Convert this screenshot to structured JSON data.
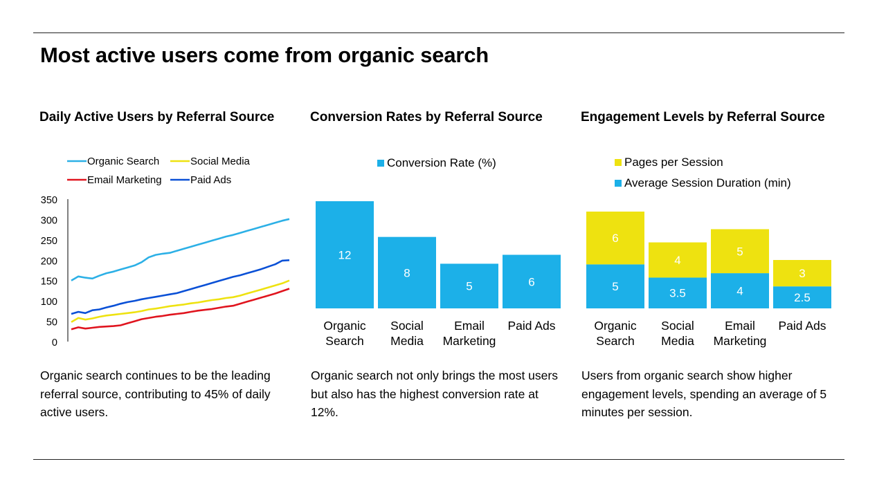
{
  "title": "Most active users come from organic search",
  "panels": [
    {
      "title": "Daily Active Users by Referral Source",
      "caption": "Organic search continues to be the leading referral source, contributing to 45% of daily active users."
    },
    {
      "title": "Conversion Rates by Referral Source",
      "caption": "Organic search not only brings the most users but also has the highest conversion rate at 12%."
    },
    {
      "title": "Engagement Levels by Referral Source",
      "caption": "Users from organic search show higher engagement levels, spending an average of 5 minutes per session."
    }
  ],
  "colors": {
    "organic": "#2CB0E6",
    "social": "#EEE210",
    "email": "#E0141E",
    "paid": "#0A50D6",
    "bar_blue": "#1CB0E8",
    "bar_yellow": "#EEE210"
  },
  "chart_data": [
    {
      "type": "line",
      "title": "Daily Active Users by Referral Source",
      "ylim": [
        0,
        350
      ],
      "yticks": [
        0,
        50,
        100,
        150,
        200,
        250,
        300,
        350
      ],
      "legend": "top",
      "series": [
        {
          "name": "Organic Search",
          "color": "#2CB0E6",
          "values": [
            150,
            160,
            157,
            155,
            162,
            168,
            172,
            177,
            182,
            187,
            195,
            207,
            213,
            216,
            218,
            223,
            228,
            233,
            238,
            243,
            248,
            253,
            258,
            262,
            267,
            272,
            277,
            282,
            287,
            292,
            297,
            301
          ]
        },
        {
          "name": "Social Media",
          "color": "#EEE210",
          "values": [
            48,
            58,
            54,
            57,
            61,
            64,
            66,
            68,
            70,
            72,
            75,
            79,
            81,
            84,
            87,
            89,
            91,
            94,
            96,
            99,
            102,
            104,
            107,
            109,
            113,
            118,
            123,
            128,
            133,
            138,
            143,
            150
          ]
        },
        {
          "name": "Email Marketing",
          "color": "#E0141E",
          "values": [
            30,
            35,
            32,
            34,
            36,
            37,
            38,
            40,
            45,
            50,
            55,
            58,
            61,
            63,
            66,
            68,
            70,
            73,
            76,
            78,
            80,
            83,
            86,
            88,
            93,
            98,
            103,
            108,
            113,
            118,
            124,
            130
          ]
        },
        {
          "name": "Paid Ads",
          "color": "#0A50D6",
          "values": [
            68,
            73,
            70,
            77,
            79,
            84,
            88,
            93,
            97,
            100,
            104,
            107,
            110,
            113,
            116,
            119,
            124,
            129,
            134,
            139,
            144,
            149,
            154,
            159,
            163,
            168,
            173,
            178,
            184,
            190,
            199,
            200
          ]
        }
      ]
    },
    {
      "type": "bar",
      "title": "Conversion Rates by Referral Source",
      "categories": [
        "Organic\nSearch",
        "Social\nMedia",
        "Email\nMarketing",
        "Paid Ads"
      ],
      "series": [
        {
          "name": "Conversion Rate (%)",
          "values": [
            12,
            8,
            5,
            6
          ],
          "color": "#1CB0E8"
        }
      ],
      "ylim": [
        0,
        12
      ],
      "legend": "top"
    },
    {
      "type": "bar",
      "stacked": true,
      "title": "Engagement Levels by Referral Source",
      "categories": [
        "Organic\nSearch",
        "Social\nMedia",
        "Email\nMarketing",
        "Paid Ads"
      ],
      "series": [
        {
          "name": "Average Session Duration (min)",
          "values": [
            5,
            3.5,
            4,
            2.5
          ],
          "color": "#1CB0E8"
        },
        {
          "name": "Pages per Session",
          "values": [
            6,
            4,
            5,
            3
          ],
          "color": "#EEE210"
        }
      ],
      "ylim": [
        0,
        11
      ],
      "legend": "top"
    }
  ]
}
